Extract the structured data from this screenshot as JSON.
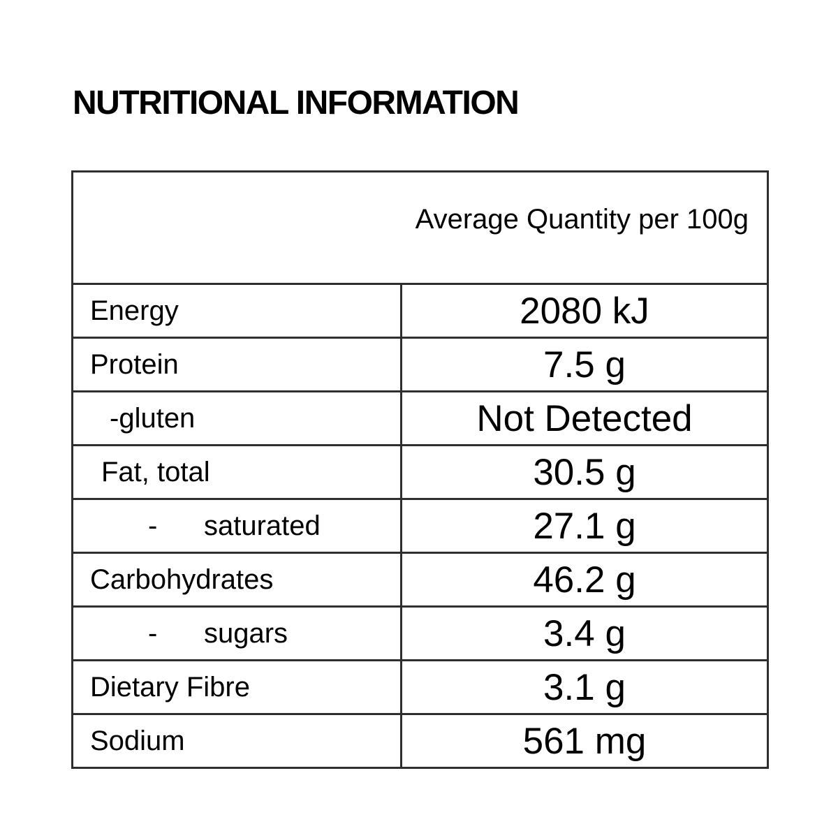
{
  "page": {
    "title": "NUTRITIONAL INFORMATION"
  },
  "table": {
    "header": "Average Quantity per 100g",
    "rows": [
      {
        "label": "Energy",
        "value": "2080 kJ"
      },
      {
        "label": "Protein",
        "value": "7.5 g"
      },
      {
        "label": "-gluten",
        "value": "Not Detected"
      },
      {
        "label": "Fat, total",
        "value": "30.5 g"
      },
      {
        "label": "-      saturated",
        "value": "27.1 g"
      },
      {
        "label": "Carbohydrates",
        "value": "46.2 g"
      },
      {
        "label": "-      sugars",
        "value": "3.4 g"
      },
      {
        "label": "Dietary Fibre",
        "value": "3.1 g"
      },
      {
        "label": "Sodium",
        "value": "561 mg"
      }
    ]
  },
  "colors": {
    "background": "#ffffff",
    "text": "#000000",
    "border": "#2e2e2e"
  }
}
